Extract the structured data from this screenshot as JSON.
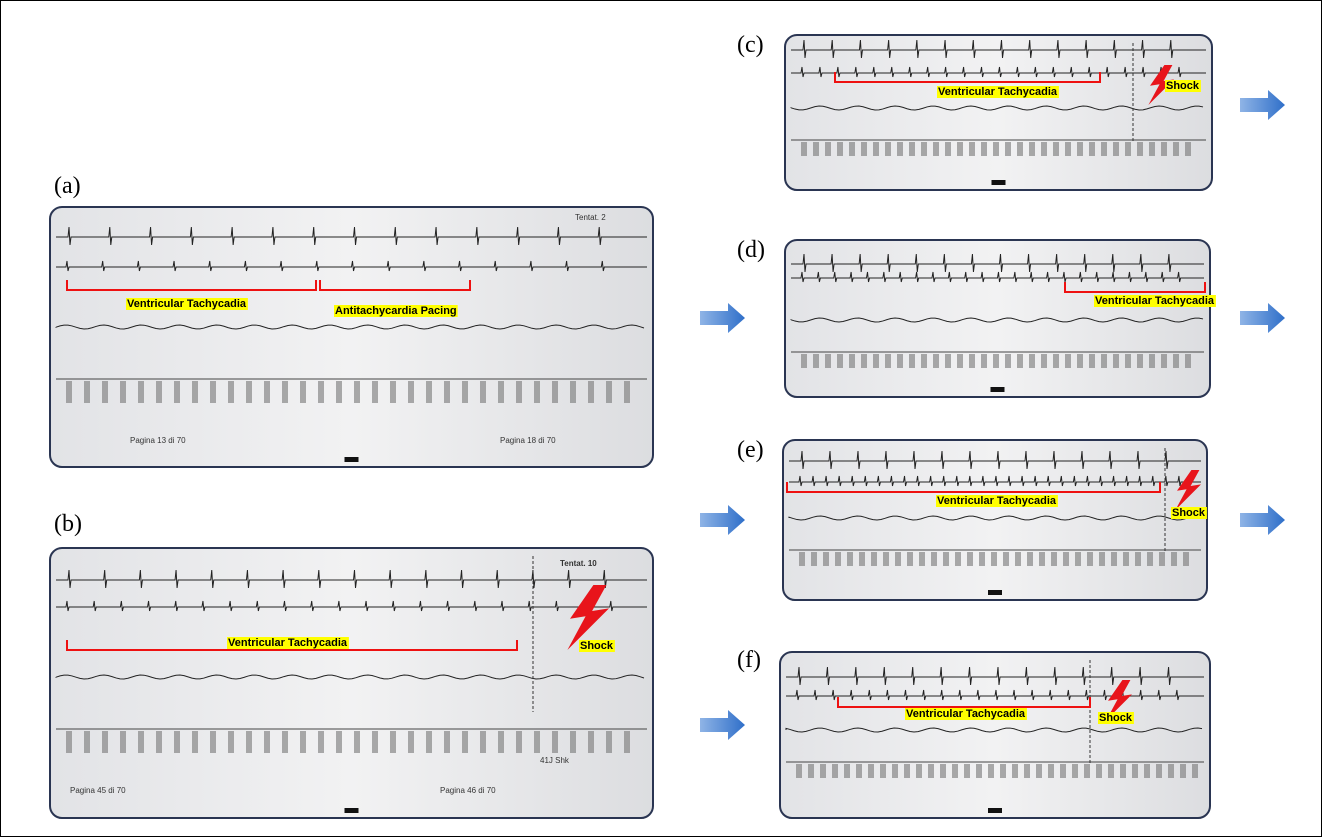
{
  "panels": [
    {
      "label": "(a)",
      "header": "Tentat. 2",
      "annotations": [
        "Ventricular Tachycadia",
        "Antitachycardia Pacing"
      ],
      "footer": [
        "Pagina 13 di 70",
        "Pagina 18 di 70"
      ]
    },
    {
      "label": "(b)",
      "header": "Tentat. 10",
      "annotations": [
        "Ventricular Tachycadia",
        "Shock"
      ],
      "footer": [
        "Pagina 45 di 70",
        "Pagina 46 di 70"
      ],
      "note": "41J Shk"
    },
    {
      "label": "(c)",
      "annotations": [
        "Ventricular Tachycadia",
        "Shock"
      ]
    },
    {
      "label": "(d)",
      "annotations": [
        "Ventricular Tachycadia"
      ]
    },
    {
      "label": "(e)",
      "annotations": [
        "Ventricular Tachycadia",
        "Shock"
      ]
    },
    {
      "label": "(f)",
      "annotations": [
        "Ventricular Tachycadia",
        "Shock"
      ]
    }
  ]
}
